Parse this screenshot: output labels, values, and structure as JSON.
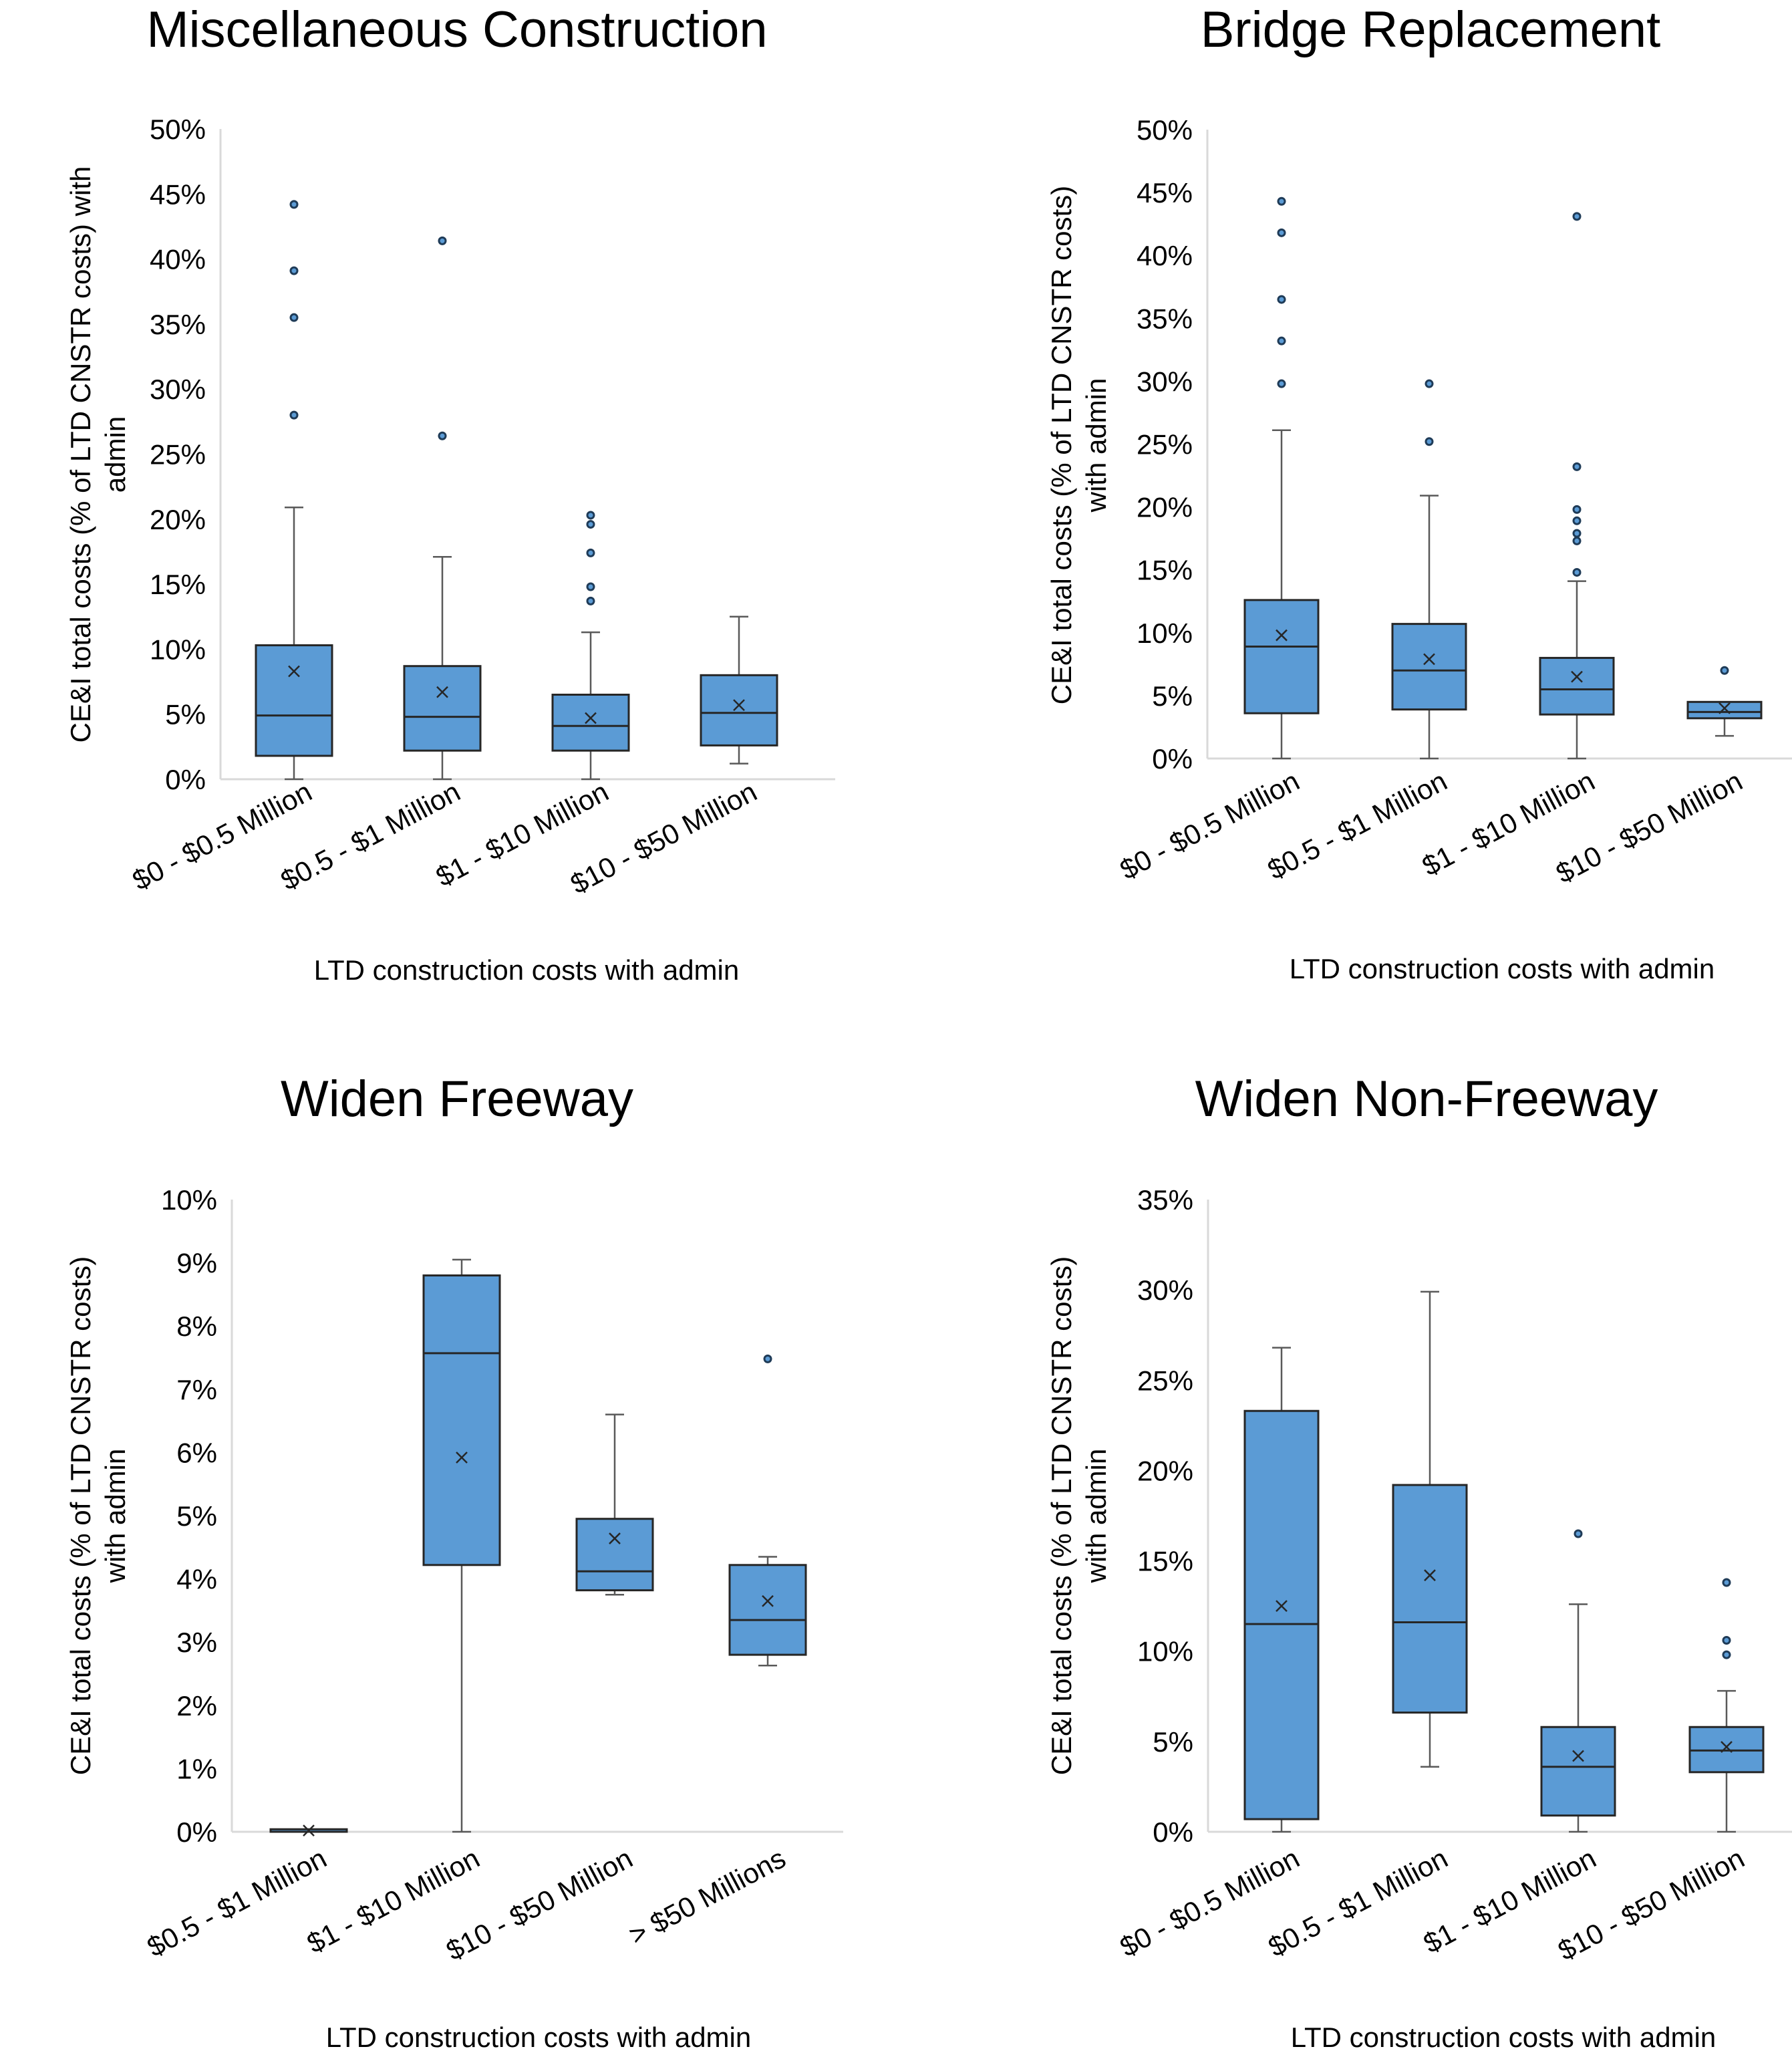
{
  "colors": {
    "box_fill": "#5b9bd5",
    "box_stroke": "#262626",
    "axis": "#d9d9d9",
    "outlier_fill": "#5b9bd5"
  },
  "chart_data": [
    {
      "type": "box",
      "title": "Miscellaneous Construction",
      "xlabel": "LTD construction costs with admin",
      "ylabel": "CE&I total costs (% of LTD CNSTR costs) with admin",
      "ylim": [
        0,
        50
      ],
      "yticks": [
        "0%",
        "5%",
        "10%",
        "15%",
        "20%",
        "25%",
        "30%",
        "35%",
        "40%",
        "45%",
        "50%"
      ],
      "categories": [
        "$0 - $0.5 Million",
        "$0.5 - $1 Million",
        "$1 - $10 Million",
        "$10 - $50 Million"
      ],
      "boxes": [
        {
          "min": 0,
          "q1": 1.8,
          "median": 4.9,
          "q3": 10.3,
          "max": 20.9,
          "mean": 8.3,
          "outliers": [
            28.0,
            35.5,
            39.1,
            44.2
          ]
        },
        {
          "min": 0,
          "q1": 2.2,
          "median": 4.8,
          "q3": 8.7,
          "max": 17.1,
          "mean": 6.7,
          "outliers": [
            26.4,
            41.4
          ]
        },
        {
          "min": 0,
          "q1": 2.2,
          "median": 4.1,
          "q3": 6.5,
          "max": 11.3,
          "mean": 4.7,
          "outliers": [
            13.7,
            14.8,
            17.4,
            19.6,
            20.3
          ]
        },
        {
          "min": 1.2,
          "q1": 2.6,
          "median": 5.1,
          "q3": 8.0,
          "max": 12.5,
          "mean": 5.7,
          "outliers": []
        }
      ]
    },
    {
      "type": "box",
      "title": "Bridge Replacement",
      "xlabel": "LTD construction costs with admin",
      "ylabel": "CE&I total costs (% of LTD CNSTR costs) with admin",
      "ylim": [
        0,
        50
      ],
      "yticks": [
        "0%",
        "5%",
        "10%",
        "15%",
        "20%",
        "25%",
        "30%",
        "35%",
        "40%",
        "45%",
        "50%"
      ],
      "categories": [
        "$0 - $0.5 Million",
        "$0.5 - $1 Million",
        "$1 - $10 Million",
        "$10 - $50 Million"
      ],
      "boxes": [
        {
          "min": 0,
          "q1": 3.6,
          "median": 8.9,
          "q3": 12.6,
          "max": 26.1,
          "mean": 9.8,
          "outliers": [
            29.8,
            33.2,
            36.5,
            41.8,
            44.3
          ]
        },
        {
          "min": 0,
          "q1": 3.9,
          "median": 7.0,
          "q3": 10.7,
          "max": 20.9,
          "mean": 7.9,
          "outliers": [
            25.2,
            29.8
          ]
        },
        {
          "min": 0,
          "q1": 3.5,
          "median": 5.5,
          "q3": 8.0,
          "max": 14.1,
          "mean": 6.5,
          "outliers": [
            14.8,
            17.3,
            17.9,
            18.9,
            19.8,
            23.2,
            43.1
          ]
        },
        {
          "min": 1.8,
          "q1": 3.2,
          "median": 3.7,
          "q3": 4.5,
          "max": 4.5,
          "mean": 4.0,
          "outliers": [
            7.0
          ]
        }
      ]
    },
    {
      "type": "box",
      "title": "Widen Freeway",
      "xlabel": "LTD construction costs with admin",
      "ylabel": "CE&I total costs (% of LTD CNSTR costs) with admin",
      "ylim": [
        0,
        10
      ],
      "yticks": [
        "0%",
        "1%",
        "2%",
        "3%",
        "4%",
        "5%",
        "6%",
        "7%",
        "8%",
        "9%",
        "10%"
      ],
      "categories": [
        "$0.5 - $1 Million",
        "$1 - $10 Million",
        "$10 - $50 Million",
        "> $50 Millions"
      ],
      "boxes": [
        {
          "min": 0,
          "q1": 0,
          "median": 0,
          "q3": 0.04,
          "max": 0.04,
          "mean": 0.02,
          "outliers": []
        },
        {
          "min": 0,
          "q1": 4.22,
          "median": 7.57,
          "q3": 8.8,
          "max": 9.05,
          "mean": 5.92,
          "outliers": []
        },
        {
          "min": 3.75,
          "q1": 3.82,
          "median": 4.12,
          "q3": 4.95,
          "max": 6.6,
          "mean": 4.64,
          "outliers": []
        },
        {
          "min": 2.63,
          "q1": 2.8,
          "median": 3.35,
          "q3": 4.22,
          "max": 4.35,
          "mean": 3.65,
          "outliers": [
            7.48
          ]
        }
      ]
    },
    {
      "type": "box",
      "title": "Widen Non-Freeway",
      "xlabel": "LTD construction costs with admin",
      "ylabel": "CE&I total costs (% of LTD CNSTR costs) with admin",
      "ylim": [
        0,
        35
      ],
      "yticks": [
        "0%",
        "5%",
        "10%",
        "15%",
        "20%",
        "25%",
        "30%",
        "35%"
      ],
      "categories": [
        "$0 - $0.5 Million",
        "$0.5 - $1 Million",
        "$1 - $10 Million",
        "$10 - $50 Million"
      ],
      "boxes": [
        {
          "min": 0,
          "q1": 0.7,
          "median": 11.5,
          "q3": 23.3,
          "max": 26.8,
          "mean": 12.5,
          "outliers": []
        },
        {
          "min": 3.6,
          "q1": 6.6,
          "median": 11.6,
          "q3": 19.2,
          "max": 29.9,
          "mean": 14.2,
          "outliers": []
        },
        {
          "min": 0,
          "q1": 0.9,
          "median": 3.6,
          "q3": 5.8,
          "max": 12.6,
          "mean": 4.2,
          "outliers": [
            16.5
          ]
        },
        {
          "min": 0,
          "q1": 3.3,
          "median": 4.5,
          "q3": 5.8,
          "max": 7.8,
          "mean": 4.7,
          "outliers": [
            9.8,
            10.6,
            13.8
          ]
        }
      ]
    }
  ]
}
